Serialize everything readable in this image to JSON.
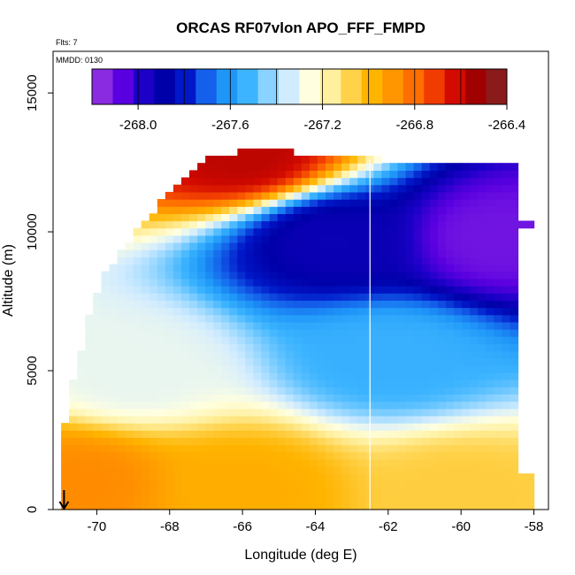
{
  "chart_data": {
    "type": "heatmap",
    "title": "ORCAS RF07vlon APO_FFF_FMPD",
    "annotations": [
      "Flts: 7",
      "MMDD: 0130"
    ],
    "xlabel": "Longitude (deg E)",
    "ylabel": "Altitude (m)",
    "xlim": [
      -71.2,
      -57.6
    ],
    "ylim": [
      0,
      16500
    ],
    "x_ticks": [
      "-70",
      "-68",
      "-66",
      "-64",
      "-62",
      "-60",
      "-58"
    ],
    "y_ticks": [
      "0",
      "5000",
      "10000",
      "15000"
    ],
    "colorbar": {
      "range": [
        -268.2,
        -266.4
      ],
      "ticks": [
        "-268.0",
        "-267.6",
        "-267.2",
        "-266.8",
        "-266.4"
      ],
      "colors": [
        "#8a2be2",
        "#5a00e0",
        "#1c00c8",
        "#0000a8",
        "#0018c8",
        "#1460ea",
        "#1e96f8",
        "#3cb4ff",
        "#8ad2ff",
        "#d2ecff",
        "#ffffe0",
        "#fff0a0",
        "#ffd24a",
        "#ffb400",
        "#ff9600",
        "#ff6e00",
        "#f03c00",
        "#d20a00",
        "#a00000",
        "#8b1a1a"
      ]
    },
    "value_field_points": [
      {
        "lon": -70.5,
        "alt": 1000,
        "apo": -266.85
      },
      {
        "lon": -66.0,
        "alt": 800,
        "apo": -266.95
      },
      {
        "lon": -60.0,
        "alt": 600,
        "apo": -267.05
      },
      {
        "lon": -69.0,
        "alt": 5000,
        "apo": -267.3
      },
      {
        "lon": -62.0,
        "alt": 5500,
        "apo": -267.55
      },
      {
        "lon": -63.5,
        "alt": 9700,
        "apo": -267.95
      },
      {
        "lon": -59.0,
        "alt": 9800,
        "apo": -268.15
      },
      {
        "lon": -66.0,
        "alt": 12800,
        "apo": -266.55
      }
    ],
    "highlight_longitude": -62.5,
    "marker": {
      "type": "arrow",
      "lon": -70.9
    }
  }
}
